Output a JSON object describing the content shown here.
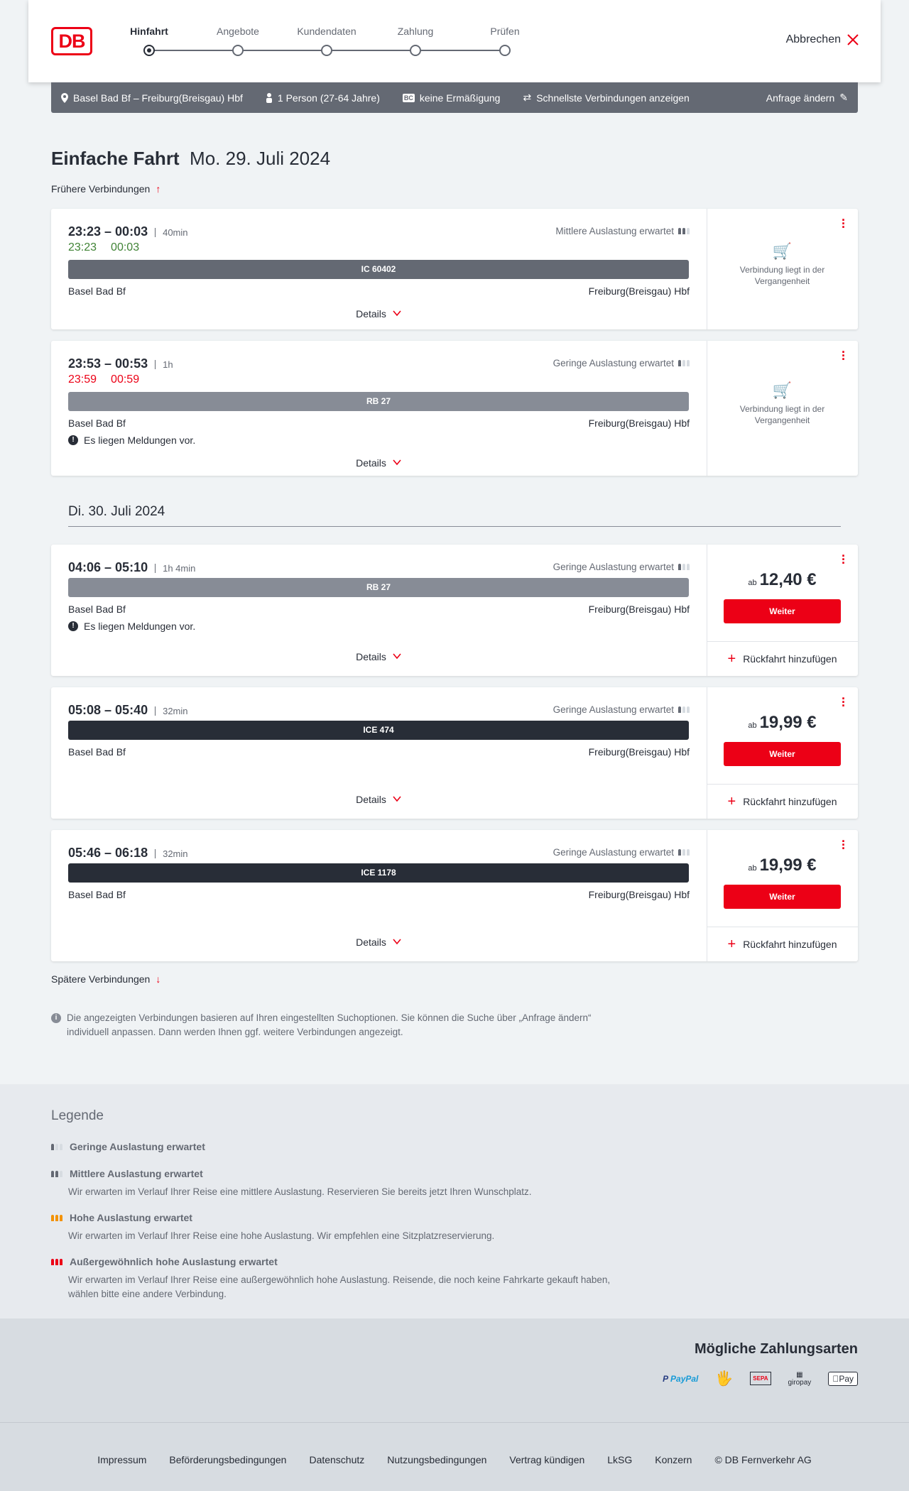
{
  "header": {
    "logo": "DB",
    "steps": [
      "Hinfahrt",
      "Angebote",
      "Kundendaten",
      "Zahlung",
      "Prüfen"
    ],
    "active_step": 0,
    "cancel": "Abbrechen"
  },
  "search_bar": {
    "route": "Basel Bad Bf – Freiburg(Breisgau) Hbf",
    "passengers": "1 Person (27-64 Jahre)",
    "discount": "keine Ermäßigung",
    "option": "Schnellste Verbindungen anzeigen",
    "change": "Anfrage ändern"
  },
  "title": {
    "main": "Einfache Fahrt",
    "date": "Mo. 29. Juli 2024"
  },
  "earlier": "Frühere Verbindungen",
  "later": "Spätere Verbindungen",
  "date2": "Di. 30. Juli 2024",
  "labels": {
    "details": "Details",
    "past": "Verbindung liegt in der Vergangenheit",
    "weiter": "Weiter",
    "ab": "ab",
    "return": "Rückfahrt hinzufügen",
    "messages": "Es liegen Meldungen vor."
  },
  "connections": [
    {
      "time": "23:23 – 00:03",
      "duration": "40min",
      "rt_dep": "23:23",
      "rt_arr": "00:03",
      "rt_color": "#408335",
      "occupancy": "Mittlere Auslastung erwartet",
      "occ_level": 2,
      "train": "IC 60402",
      "train_color": "#646973",
      "from": "Basel Bad Bf",
      "to": "Freiburg(Breisgau) Hbf"
    },
    {
      "time": "23:53 – 00:53",
      "duration": "1h",
      "rt_dep": "23:59",
      "rt_arr": "00:59",
      "rt_color": "#ec0016",
      "occupancy": "Geringe Auslastung erwartet",
      "occ_level": 1,
      "train": "RB 27",
      "train_color": "#878c96",
      "from": "Basel Bad Bf",
      "to": "Freiburg(Breisgau) Hbf"
    },
    {
      "time": "04:06 – 05:10",
      "duration": "1h 4min",
      "occupancy": "Geringe Auslastung erwartet",
      "occ_level": 1,
      "train": "RB 27",
      "train_color": "#878c96",
      "from": "Basel Bad Bf",
      "to": "Freiburg(Breisgau) Hbf",
      "price": "12,40 €"
    },
    {
      "time": "05:08 – 05:40",
      "duration": "32min",
      "occupancy": "Geringe Auslastung erwartet",
      "occ_level": 1,
      "train": "ICE 474",
      "train_color": "#282d37",
      "from": "Basel Bad Bf",
      "to": "Freiburg(Breisgau) Hbf",
      "price": "19,99 €"
    },
    {
      "time": "05:46 – 06:18",
      "duration": "32min",
      "occupancy": "Geringe Auslastung erwartet",
      "occ_level": 1,
      "train": "ICE 1178",
      "train_color": "#282d37",
      "from": "Basel Bad Bf",
      "to": "Freiburg(Breisgau) Hbf",
      "price": "19,99 €"
    }
  ],
  "note": "Die angezeigten Verbindungen basieren auf Ihren eingestellten Suchoptionen. Sie können die Suche über „Anfrage ändern“ individuell anpassen. Dann werden Ihnen ggf. weitere Verbindungen angezeigt.",
  "legend": {
    "title": "Legende",
    "items": [
      {
        "title": "Geringe Auslastung erwartet",
        "desc": ""
      },
      {
        "title": "Mittlere Auslastung erwartet",
        "desc": "Wir erwarten im Verlauf Ihrer Reise eine mittlere Auslastung. Reservieren Sie bereits jetzt Ihren Wunschplatz."
      },
      {
        "title": "Hohe Auslastung erwartet",
        "desc": "Wir erwarten im Verlauf Ihrer Reise eine hohe Auslastung. Wir empfehlen eine Sitzplatzreservierung."
      },
      {
        "title": "Außergewöhnlich hohe Auslastung erwartet",
        "desc": "Wir erwarten im Verlauf Ihrer Reise eine außergewöhnlich hohe Auslastung. Reisende, die noch keine Fahrkarte gekauft haben, wählen bitte eine andere Verbindung."
      }
    ]
  },
  "payment": {
    "title": "Mögliche Zahlungsarten",
    "methods": [
      "PayPal",
      "Kreditkarte",
      "SEPA",
      "giropay",
      "Apple Pay"
    ]
  },
  "footer": [
    "Impressum",
    "Beförderungsbedingungen",
    "Datenschutz",
    "Nutzungsbedingungen",
    "Vertrag kündigen",
    "LkSG",
    "Konzern",
    "© DB Fernverkehr AG"
  ],
  "colors": {
    "brand": "#ec0016",
    "bar": "#646973",
    "text": "#282d37"
  }
}
